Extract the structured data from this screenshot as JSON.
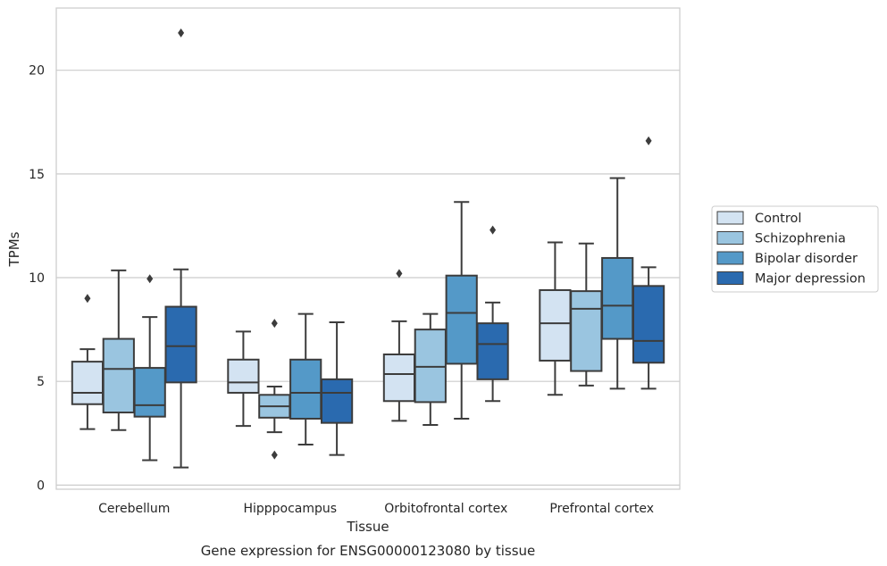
{
  "chart_data": {
    "type": "box",
    "xlabel": "Tissue",
    "ylabel": "TPMs",
    "caption": "Gene expression for ENSG00000123080 by tissue",
    "ylim": [
      -0.2,
      23
    ],
    "yticks": [
      0,
      5,
      10,
      15,
      20
    ],
    "grid": "horizontal",
    "legend_position": "right",
    "categories": [
      "Cerebellum",
      "Hipppocampus",
      "Orbitofrontal cortex",
      "Prefrontal cortex"
    ],
    "series": [
      {
        "name": "Control",
        "color": "#d3e3f2",
        "boxes": [
          {
            "whislo": 2.7,
            "q1": 3.9,
            "med": 4.45,
            "q3": 5.95,
            "whishi": 6.55,
            "fliers": [
              9.0
            ]
          },
          {
            "whislo": 2.85,
            "q1": 4.45,
            "med": 4.95,
            "q3": 6.05,
            "whishi": 7.4,
            "fliers": []
          },
          {
            "whislo": 3.1,
            "q1": 4.05,
            "med": 5.35,
            "q3": 6.3,
            "whishi": 7.9,
            "fliers": [
              10.2
            ]
          },
          {
            "whislo": 4.35,
            "q1": 6.0,
            "med": 7.8,
            "q3": 9.4,
            "whishi": 11.7,
            "fliers": []
          }
        ]
      },
      {
        "name": "Schizophrenia",
        "color": "#9ac5e0",
        "boxes": [
          {
            "whislo": 2.65,
            "q1": 3.5,
            "med": 5.6,
            "q3": 7.05,
            "whishi": 10.35,
            "fliers": []
          },
          {
            "whislo": 2.55,
            "q1": 3.25,
            "med": 3.8,
            "q3": 4.35,
            "whishi": 4.75,
            "fliers": [
              7.8,
              1.45
            ]
          },
          {
            "whislo": 2.9,
            "q1": 4.0,
            "med": 5.7,
            "q3": 7.5,
            "whishi": 8.25,
            "fliers": []
          },
          {
            "whislo": 4.8,
            "q1": 5.5,
            "med": 8.5,
            "q3": 9.35,
            "whishi": 11.65,
            "fliers": []
          }
        ]
      },
      {
        "name": "Bipolar disorder",
        "color": "#5499c8",
        "boxes": [
          {
            "whislo": 1.2,
            "q1": 3.3,
            "med": 3.85,
            "q3": 5.65,
            "whishi": 8.1,
            "fliers": [
              9.95
            ]
          },
          {
            "whislo": 1.95,
            "q1": 3.2,
            "med": 4.45,
            "q3": 6.05,
            "whishi": 8.25,
            "fliers": []
          },
          {
            "whislo": 3.2,
            "q1": 5.85,
            "med": 8.3,
            "q3": 10.1,
            "whishi": 13.65,
            "fliers": []
          },
          {
            "whislo": 4.65,
            "q1": 7.05,
            "med": 8.65,
            "q3": 10.95,
            "whishi": 14.8,
            "fliers": []
          }
        ]
      },
      {
        "name": "Major depression",
        "color": "#2a6aaf",
        "boxes": [
          {
            "whislo": 0.85,
            "q1": 4.95,
            "med": 6.7,
            "q3": 8.6,
            "whishi": 10.4,
            "fliers": [
              21.8
            ]
          },
          {
            "whislo": 1.45,
            "q1": 3.0,
            "med": 4.45,
            "q3": 5.1,
            "whishi": 7.85,
            "fliers": []
          },
          {
            "whislo": 4.05,
            "q1": 5.1,
            "med": 6.8,
            "q3": 7.8,
            "whishi": 8.8,
            "fliers": [
              12.3
            ]
          },
          {
            "whislo": 4.65,
            "q1": 5.9,
            "med": 6.95,
            "q3": 9.6,
            "whishi": 10.5,
            "fliers": [
              16.6
            ]
          }
        ]
      }
    ]
  }
}
